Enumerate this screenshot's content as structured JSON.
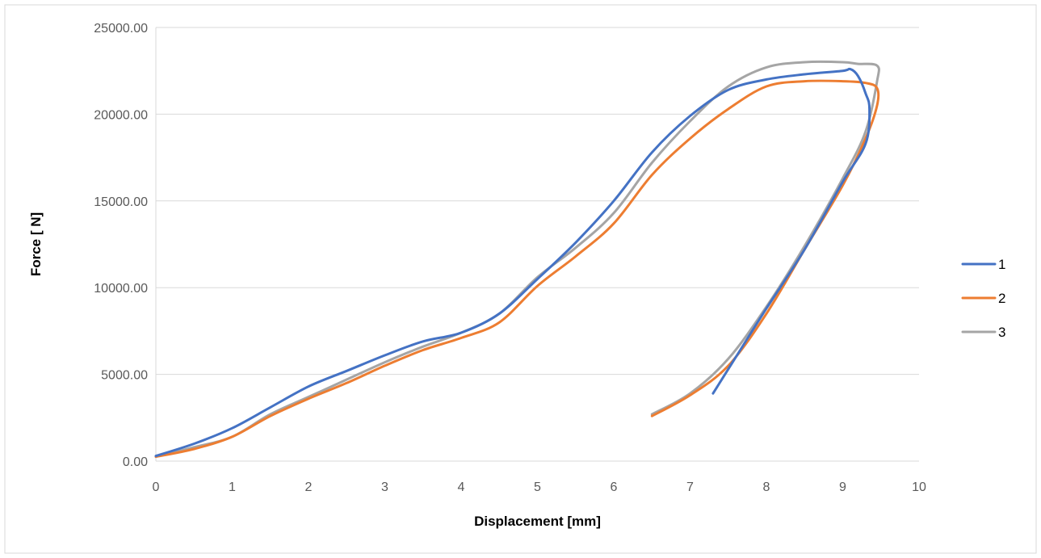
{
  "chart_data": {
    "type": "line",
    "title": "",
    "xlabel": "Displacement [mm]",
    "ylabel": "Force [ N]",
    "xlim": [
      0,
      10
    ],
    "ylim": [
      0,
      25000
    ],
    "x_ticks": [
      0,
      1,
      2,
      3,
      4,
      5,
      6,
      7,
      8,
      9,
      10
    ],
    "x_tick_labels": [
      "0",
      "1",
      "2",
      "3",
      "4",
      "5",
      "6",
      "7",
      "8",
      "9",
      "10"
    ],
    "y_ticks": [
      0,
      5000,
      10000,
      15000,
      20000,
      25000
    ],
    "y_tick_labels": [
      "0.00",
      "5000.00",
      "10000.00",
      "15000.00",
      "20000.00",
      "25000.00"
    ],
    "grid": "horizontal",
    "legend_position": "right",
    "colors": [
      "#4472C4",
      "#ED7D31",
      "#A5A5A5"
    ],
    "series": [
      {
        "name": "1",
        "points": [
          [
            0,
            300
          ],
          [
            0.5,
            1000
          ],
          [
            1,
            1900
          ],
          [
            1.5,
            3100
          ],
          [
            2,
            4300
          ],
          [
            2.5,
            5200
          ],
          [
            3,
            6100
          ],
          [
            3.5,
            6900
          ],
          [
            4,
            7400
          ],
          [
            4.5,
            8500
          ],
          [
            5,
            10500
          ],
          [
            5.5,
            12600
          ],
          [
            6,
            15000
          ],
          [
            6.5,
            17800
          ],
          [
            7,
            19900
          ],
          [
            7.5,
            21400
          ],
          [
            8,
            22000
          ],
          [
            8.5,
            22300
          ],
          [
            9,
            22500
          ],
          [
            9.1,
            22600
          ],
          [
            9.2,
            22200
          ],
          [
            9.3,
            21200
          ],
          [
            9.35,
            20300
          ],
          [
            9.3,
            18300
          ],
          [
            9,
            16100
          ],
          [
            8.5,
            12200
          ],
          [
            8,
            8800
          ],
          [
            7.6,
            6000
          ],
          [
            7.3,
            3900
          ]
        ]
      },
      {
        "name": "2",
        "points": [
          [
            0,
            250
          ],
          [
            0.5,
            700
          ],
          [
            1,
            1400
          ],
          [
            1.5,
            2600
          ],
          [
            2,
            3600
          ],
          [
            2.5,
            4500
          ],
          [
            3,
            5500
          ],
          [
            3.5,
            6400
          ],
          [
            4,
            7100
          ],
          [
            4.5,
            8000
          ],
          [
            5,
            10100
          ],
          [
            5.5,
            11800
          ],
          [
            6,
            13700
          ],
          [
            6.5,
            16500
          ],
          [
            7,
            18600
          ],
          [
            7.5,
            20300
          ],
          [
            8,
            21600
          ],
          [
            8.5,
            21900
          ],
          [
            9,
            21900
          ],
          [
            9.3,
            21800
          ],
          [
            9.45,
            21500
          ],
          [
            9.45,
            20500
          ],
          [
            9.3,
            18600
          ],
          [
            9,
            15900
          ],
          [
            8.5,
            12200
          ],
          [
            8,
            8500
          ],
          [
            7.5,
            5500
          ],
          [
            7,
            3800
          ],
          [
            6.5,
            2600
          ]
        ]
      },
      {
        "name": "3",
        "points": [
          [
            0,
            250
          ],
          [
            0.5,
            800
          ],
          [
            1,
            1400
          ],
          [
            1.5,
            2700
          ],
          [
            2,
            3700
          ],
          [
            2.5,
            4700
          ],
          [
            3,
            5700
          ],
          [
            3.5,
            6600
          ],
          [
            4,
            7400
          ],
          [
            4.5,
            8500
          ],
          [
            5,
            10600
          ],
          [
            5.5,
            12300
          ],
          [
            6,
            14300
          ],
          [
            6.5,
            17200
          ],
          [
            7,
            19600
          ],
          [
            7.5,
            21600
          ],
          [
            8,
            22700
          ],
          [
            8.5,
            23000
          ],
          [
            9,
            23000
          ],
          [
            9.2,
            22900
          ],
          [
            9.45,
            22800
          ],
          [
            9.45,
            21900
          ],
          [
            9.3,
            19000
          ],
          [
            9,
            16300
          ],
          [
            8.5,
            12400
          ],
          [
            8,
            8900
          ],
          [
            7.5,
            5900
          ],
          [
            7,
            3900
          ],
          [
            6.5,
            2700
          ]
        ]
      }
    ]
  }
}
